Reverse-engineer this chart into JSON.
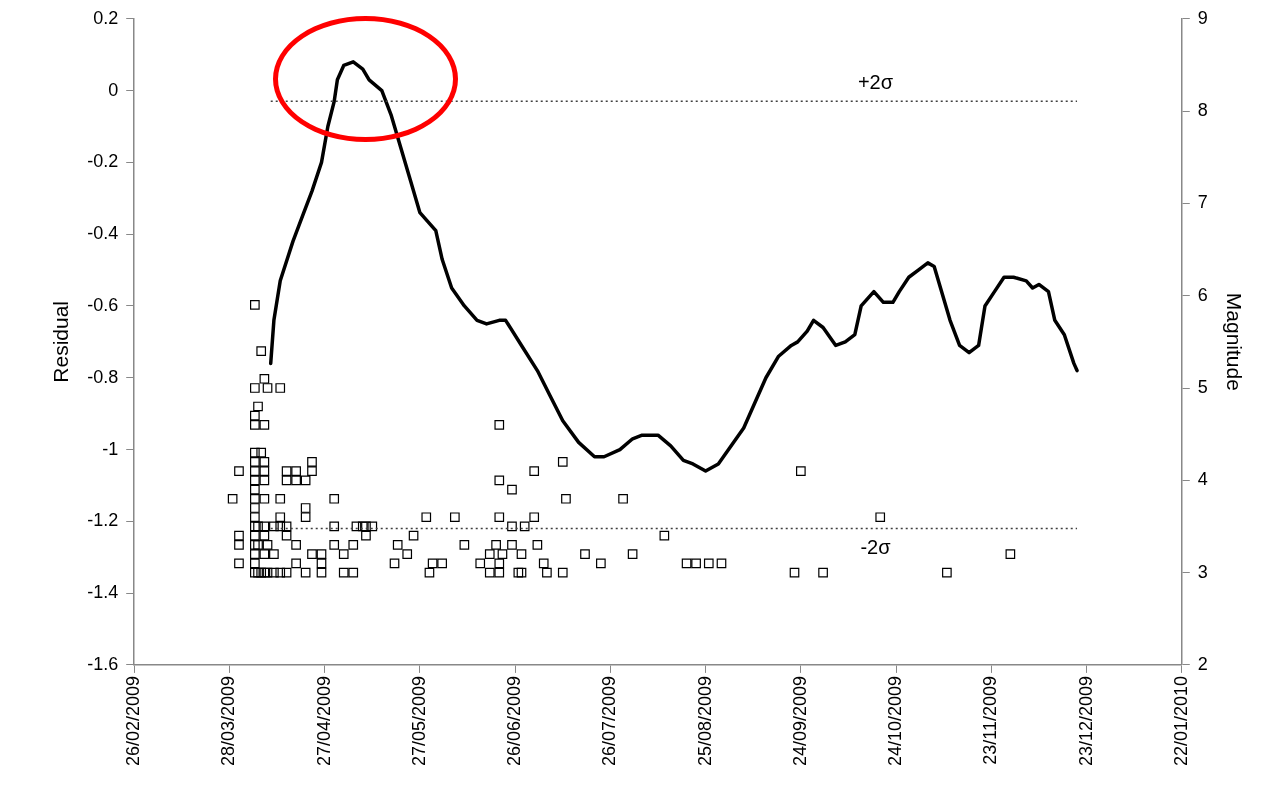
{
  "chart_data": {
    "type": "line",
    "ylabel": "Residual",
    "y2label": "Magnitude",
    "xlim": [
      "2009-02-26",
      "2010-01-22"
    ],
    "xticks": [
      {
        "value": "2009-02-26",
        "label": "26/02/2009"
      },
      {
        "value": "2009-03-28",
        "label": "28/03/2009"
      },
      {
        "value": "2009-04-27",
        "label": "27/04/2009"
      },
      {
        "value": "2009-05-27",
        "label": "27/05/2009"
      },
      {
        "value": "2009-06-26",
        "label": "26/06/2009"
      },
      {
        "value": "2009-07-26",
        "label": "26/07/2009"
      },
      {
        "value": "2009-08-25",
        "label": "25/08/2009"
      },
      {
        "value": "2009-09-24",
        "label": "24/09/2009"
      },
      {
        "value": "2009-10-24",
        "label": "24/10/2009"
      },
      {
        "value": "2009-11-23",
        "label": "23/11/2009"
      },
      {
        "value": "2009-12-23",
        "label": "23/12/2009"
      },
      {
        "value": "2010-01-22",
        "label": "22/01/2010"
      }
    ],
    "ylim": [
      -1.6,
      0.2
    ],
    "yticks": [
      -1.6,
      -1.4,
      -1.2,
      -1,
      -0.8,
      -0.6,
      -0.4,
      -0.2,
      0,
      0.2
    ],
    "y2lim": [
      2,
      9
    ],
    "y2ticks": [
      2,
      3,
      4,
      5,
      6,
      7,
      8,
      9
    ],
    "legend": false,
    "ref_lines": [
      {
        "axis": "y",
        "value": -0.03,
        "label": "+2σ",
        "line_style": "dotted",
        "color": "#404040"
      },
      {
        "axis": "y",
        "value": -1.22,
        "label": "-2σ",
        "line_style": "dotted",
        "color": "#404040"
      }
    ],
    "series": [
      {
        "color": "#000000",
        "line_style": "solid",
        "x": [
          "2009-04-10",
          "2009-04-11",
          "2009-04-13",
          "2009-04-17",
          "2009-04-20",
          "2009-04-23",
          "2009-04-26",
          "2009-04-28",
          "2009-04-30",
          "2009-05-01",
          "2009-05-03",
          "2009-05-06",
          "2009-05-09",
          "2009-05-11",
          "2009-05-15",
          "2009-05-18",
          "2009-05-21",
          "2009-05-24",
          "2009-05-27",
          "2009-06-01",
          "2009-06-03",
          "2009-06-06",
          "2009-06-10",
          "2009-06-14",
          "2009-06-17",
          "2009-06-21",
          "2009-06-23",
          "2009-06-28",
          "2009-07-03",
          "2009-07-07",
          "2009-07-11",
          "2009-07-16",
          "2009-07-21",
          "2009-07-24",
          "2009-07-29",
          "2009-08-02",
          "2009-08-05",
          "2009-08-10",
          "2009-08-14",
          "2009-08-18",
          "2009-08-21",
          "2009-08-25",
          "2009-08-29",
          "2009-09-02",
          "2009-09-06",
          "2009-09-10",
          "2009-09-13",
          "2009-09-17",
          "2009-09-21",
          "2009-09-23",
          "2009-09-26",
          "2009-09-28",
          "2009-10-01",
          "2009-10-05",
          "2009-10-08",
          "2009-10-11",
          "2009-10-13",
          "2009-10-17",
          "2009-10-20",
          "2009-10-23",
          "2009-10-25",
          "2009-10-28",
          "2009-10-31",
          "2009-11-03",
          "2009-11-05",
          "2009-11-07",
          "2009-11-10",
          "2009-11-13",
          "2009-11-16",
          "2009-11-19",
          "2009-11-21",
          "2009-11-24",
          "2009-11-27",
          "2009-11-30",
          "2009-12-04",
          "2009-12-06",
          "2009-12-08",
          "2009-12-11",
          "2009-12-13",
          "2009-12-16",
          "2009-12-19",
          "2009-12-20"
        ],
        "values": [
          -0.76,
          -0.64,
          -0.53,
          -0.42,
          -0.35,
          -0.28,
          -0.2,
          -0.1,
          -0.03,
          0.03,
          0.07,
          0.08,
          0.06,
          0.03,
          0,
          -0.07,
          -0.16,
          -0.25,
          -0.34,
          -0.39,
          -0.47,
          -0.55,
          -0.6,
          -0.64,
          -0.65,
          -0.64,
          -0.64,
          -0.71,
          -0.78,
          -0.85,
          -0.92,
          -0.98,
          -1.02,
          -1.02,
          -1,
          -0.97,
          -0.96,
          -0.96,
          -0.99,
          -1.03,
          -1.04,
          -1.06,
          -1.04,
          -0.99,
          -0.94,
          -0.86,
          -0.8,
          -0.74,
          -0.71,
          -0.7,
          -0.67,
          -0.64,
          -0.66,
          -0.71,
          -0.7,
          -0.68,
          -0.6,
          -0.56,
          -0.59,
          -0.59,
          -0.56,
          -0.52,
          -0.5,
          -0.48,
          -0.49,
          -0.55,
          -0.64,
          -0.71,
          -0.73,
          -0.71,
          -0.6,
          -0.56,
          -0.52,
          -0.52,
          -0.53,
          -0.55,
          -0.54,
          -0.56,
          -0.64,
          -0.68,
          -0.76,
          -0.78
        ]
      },
      {
        "type": "scatter",
        "axis": "y2",
        "color": "#000000",
        "marker": "square",
        "x": [
          "2009-03-29",
          "2009-03-31",
          "2009-03-31",
          "2009-03-31",
          "2009-03-31",
          "2009-04-05",
          "2009-04-05",
          "2009-04-05",
          "2009-04-05",
          "2009-04-05",
          "2009-04-05",
          "2009-04-05",
          "2009-04-05",
          "2009-04-05",
          "2009-04-05",
          "2009-04-05",
          "2009-04-05",
          "2009-04-05",
          "2009-04-05",
          "2009-04-05",
          "2009-04-05",
          "2009-04-05",
          "2009-04-05",
          "2009-04-06",
          "2009-04-06",
          "2009-04-06",
          "2009-04-06",
          "2009-04-07",
          "2009-04-07",
          "2009-04-07",
          "2009-04-08",
          "2009-04-08",
          "2009-04-08",
          "2009-04-08",
          "2009-04-08",
          "2009-04-08",
          "2009-04-08",
          "2009-04-08",
          "2009-04-08",
          "2009-04-08",
          "2009-04-09",
          "2009-04-09",
          "2009-04-09",
          "2009-04-11",
          "2009-04-11",
          "2009-04-11",
          "2009-04-13",
          "2009-04-13",
          "2009-04-13",
          "2009-04-13",
          "2009-04-13",
          "2009-04-15",
          "2009-04-15",
          "2009-04-15",
          "2009-04-15",
          "2009-04-15",
          "2009-04-18",
          "2009-04-18",
          "2009-04-18",
          "2009-04-18",
          "2009-04-21",
          "2009-04-21",
          "2009-04-21",
          "2009-04-21",
          "2009-04-23",
          "2009-04-23",
          "2009-04-23",
          "2009-04-26",
          "2009-04-26",
          "2009-04-26",
          "2009-04-30",
          "2009-04-30",
          "2009-04-30",
          "2009-05-03",
          "2009-05-03",
          "2009-05-06",
          "2009-05-06",
          "2009-05-07",
          "2009-05-09",
          "2009-05-10",
          "2009-05-10",
          "2009-05-12",
          "2009-05-19",
          "2009-05-20",
          "2009-05-23",
          "2009-05-25",
          "2009-05-29",
          "2009-05-30",
          "2009-05-31",
          "2009-06-03",
          "2009-06-07",
          "2009-06-10",
          "2009-06-15",
          "2009-06-18",
          "2009-06-18",
          "2009-06-20",
          "2009-06-21",
          "2009-06-21",
          "2009-06-21",
          "2009-06-21",
          "2009-06-21",
          "2009-06-22",
          "2009-06-25",
          "2009-06-25",
          "2009-06-25",
          "2009-06-27",
          "2009-06-28",
          "2009-06-28",
          "2009-06-29",
          "2009-07-02",
          "2009-07-02",
          "2009-07-03",
          "2009-07-05",
          "2009-07-06",
          "2009-07-11",
          "2009-07-11",
          "2009-07-12",
          "2009-07-18",
          "2009-07-23",
          "2009-07-30",
          "2009-08-02",
          "2009-08-12",
          "2009-08-19",
          "2009-08-22",
          "2009-08-26",
          "2009-08-30",
          "2009-09-22",
          "2009-09-24",
          "2009-10-01",
          "2009-10-19",
          "2009-11-09",
          "2009-11-29"
        ],
        "values": [
          3.8,
          4.1,
          3.4,
          3.3,
          3.1,
          5.9,
          5,
          4.7,
          4.6,
          4.3,
          4.2,
          4.1,
          4,
          3.9,
          3.8,
          3.7,
          3.6,
          3.5,
          3.4,
          3.3,
          3.2,
          3.1,
          3,
          4.8,
          3.5,
          3.3,
          3,
          5.4,
          4.3,
          3,
          5.1,
          4.6,
          4.2,
          4.1,
          4,
          3.8,
          3.5,
          3.4,
          3.2,
          3,
          5,
          3.3,
          3,
          3.5,
          3.2,
          3,
          5,
          3.8,
          3.6,
          3.5,
          3,
          4.1,
          4,
          3.5,
          3.4,
          3,
          4.1,
          4,
          3.3,
          3.1,
          3.7,
          4,
          3.6,
          3,
          4.2,
          4.1,
          3.2,
          3.1,
          3.2,
          3,
          3.8,
          3.5,
          3.3,
          3.2,
          3,
          3.3,
          3,
          3.5,
          3.5,
          3.4,
          3.5,
          3.5,
          3.1,
          3.3,
          3.2,
          3.4,
          3.6,
          3,
          3.1,
          3.1,
          3.6,
          3.3,
          3.1,
          3.2,
          3,
          3.3,
          4.6,
          4,
          3,
          3.1,
          3.6,
          3.2,
          3.9,
          3.3,
          3.5,
          3,
          3.2,
          3,
          3.5,
          3.6,
          4.1,
          3.3,
          3.1,
          3,
          4.2,
          3,
          3.8,
          3.2,
          3.1,
          3.8,
          3.2,
          3.4,
          3.1,
          3.1,
          3.1,
          3.1,
          3,
          4.1,
          3,
          3.6,
          3,
          3.2
        ]
      }
    ]
  }
}
